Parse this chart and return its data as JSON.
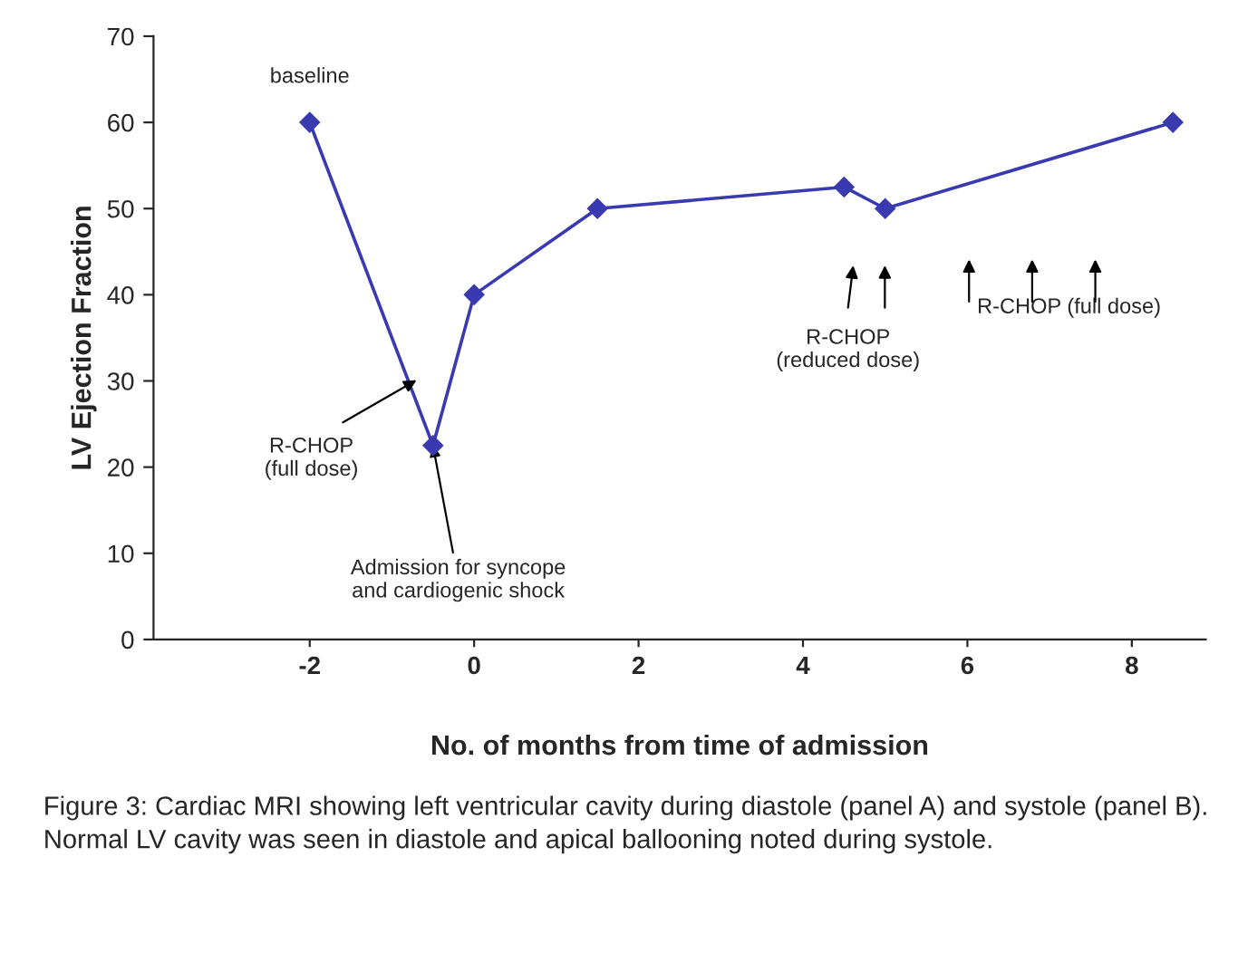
{
  "chart_data": {
    "type": "line",
    "xlabel": "No. of months from time of admission",
    "ylabel": "LV Ejection Fraction",
    "x": [
      -2,
      -0.5,
      0,
      1.5,
      4.5,
      5,
      8.5
    ],
    "series": [
      {
        "color": "#3a3ab0",
        "values": [
          60,
          22.5,
          40,
          50,
          52.5,
          50,
          60
        ]
      }
    ],
    "xlim": [
      -3.9,
      8.9
    ],
    "xticks": [
      -2,
      0,
      2,
      4,
      6,
      8
    ],
    "ylim": [
      0,
      70
    ],
    "yticks": [
      0,
      10,
      20,
      30,
      40,
      50,
      60,
      70
    ],
    "grid": false,
    "marker": "diamond",
    "line_style": "solid",
    "annotations": [
      {
        "text": "baseline",
        "x": -2,
        "y": 60
      },
      "R-CHOP\n(full dose)",
      {
        "text": "Admission for syncope\nand cardiogenic shock",
        "x": -0.5,
        "y": 22.5
      },
      "R-CHOP\n(reduced dose)",
      "R-CHOP (full dose)",
      "Figure 3: Cardiac MRI showing left ventricular cavity during diastole (panel A) and systole (panel B). Normal LV cavity was seen in diastole and apical ballooning noted during systole."
    ]
  }
}
